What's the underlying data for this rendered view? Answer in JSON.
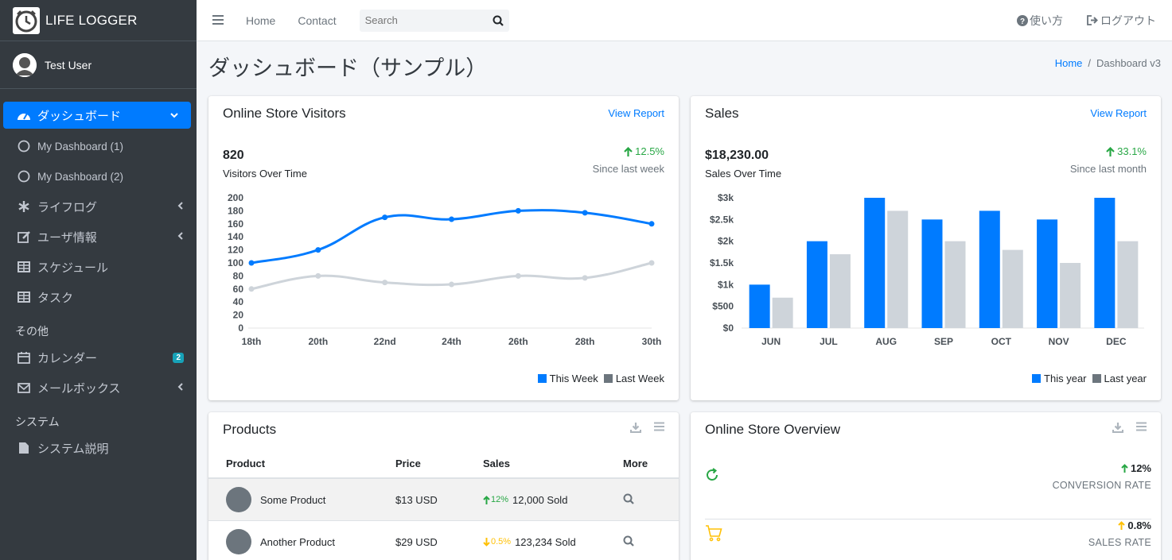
{
  "brand": {
    "name": "LIFE LOGGER"
  },
  "user": {
    "name": "Test User"
  },
  "sidebar": {
    "items": [
      {
        "label": "ダッシュボード",
        "icon": "tachometer-icon"
      },
      {
        "label": "My Dashboard (1)",
        "icon": "circle-icon"
      },
      {
        "label": "My Dashboard (2)",
        "icon": "circle-icon"
      },
      {
        "label": "ライフログ",
        "icon": "asterisk-icon"
      },
      {
        "label": "ユーザ情報",
        "icon": "edit-icon"
      },
      {
        "label": "スケジュール",
        "icon": "table-icon"
      },
      {
        "label": "タスク",
        "icon": "table-icon"
      }
    ],
    "header_other": "その他",
    "other_items": [
      {
        "label": "カレンダー",
        "icon": "calendar-icon",
        "badge": "2"
      },
      {
        "label": "メールボックス",
        "icon": "envelope-icon"
      }
    ],
    "header_system": "システム",
    "system_items": [
      {
        "label": "システム説明",
        "icon": "file-icon"
      }
    ]
  },
  "topnav": {
    "home": "Home",
    "contact": "Contact",
    "search_placeholder": "Search",
    "help": "使い方",
    "logout": "ログアウト"
  },
  "page": {
    "title": "ダッシュボード（サンプル）",
    "breadcrumb_home": "Home",
    "breadcrumb_current": "Dashboard v3"
  },
  "visitors": {
    "title": "Online Store Visitors",
    "link": "View Report",
    "value": "820",
    "value_label": "Visitors Over Time",
    "change": "12.5%",
    "change_label": "Since last week",
    "legend_this": "This Week",
    "legend_last": "Last Week"
  },
  "sales": {
    "title": "Sales",
    "link": "View Report",
    "value": "$18,230.00",
    "value_label": "Sales Over Time",
    "change": "33.1%",
    "change_label": "Since last month",
    "legend_this": "This year",
    "legend_last": "Last year"
  },
  "products": {
    "title": "Products",
    "headers": {
      "product": "Product",
      "price": "Price",
      "sales": "Sales",
      "more": "More"
    },
    "rows": [
      {
        "name": "Some Product",
        "price": "$13 USD",
        "change": "12%",
        "direction": "up",
        "sold": "12,000 Sold"
      },
      {
        "name": "Another Product",
        "price": "$29 USD",
        "change": "0.5%",
        "direction": "down",
        "sold": "123,234 Sold"
      }
    ]
  },
  "overview": {
    "title": "Online Store Overview",
    "rows": [
      {
        "value": "12%",
        "label": "CONVERSION RATE",
        "icon": "refresh-icon"
      },
      {
        "value": "0.8%",
        "label": "SALES RATE",
        "icon": "cart-icon"
      }
    ]
  },
  "colors": {
    "primary": "#007bff",
    "gray": "#ced4da",
    "success": "#28a745",
    "warning": "#ffc107",
    "sidebar": "#343a40"
  },
  "chart_data": [
    {
      "type": "line",
      "x": [
        "18th",
        "20th",
        "22nd",
        "24th",
        "26th",
        "28th",
        "30th"
      ],
      "series": [
        {
          "name": "This Week",
          "values": [
            100,
            120,
            170,
            167,
            180,
            177,
            160
          ]
        },
        {
          "name": "Last Week",
          "values": [
            60,
            80,
            70,
            67,
            80,
            77,
            100
          ]
        }
      ],
      "ylim": [
        0,
        200
      ],
      "yticks": [
        0,
        20,
        40,
        60,
        80,
        100,
        120,
        140,
        160,
        180,
        200
      ],
      "legend": "bottom-right",
      "grid": false
    },
    {
      "type": "bar",
      "categories": [
        "JUN",
        "JUL",
        "AUG",
        "SEP",
        "OCT",
        "NOV",
        "DEC"
      ],
      "series": [
        {
          "name": "This year",
          "values": [
            1000,
            2000,
            3000,
            2500,
            2700,
            2500,
            3000
          ]
        },
        {
          "name": "Last year",
          "values": [
            700,
            1700,
            2700,
            2000,
            1800,
            1500,
            2000
          ]
        }
      ],
      "ylim": [
        0,
        3000
      ],
      "yticks": [
        "$0",
        "$500",
        "$1k",
        "$1.5k",
        "$2k",
        "$2.5k",
        "$3k"
      ],
      "legend": "bottom-right",
      "grid": false
    }
  ]
}
